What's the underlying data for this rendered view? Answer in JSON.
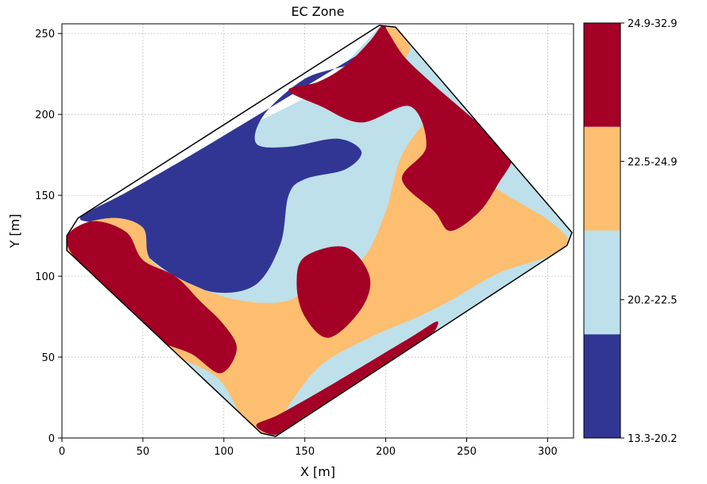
{
  "chart_data": {
    "type": "heatmap",
    "title": "EC Zone",
    "xlabel": "X [m]",
    "ylabel": "Y [m]",
    "xlim": [
      0,
      316
    ],
    "ylim": [
      0,
      256
    ],
    "x_ticks": [
      0,
      50,
      100,
      150,
      200,
      250,
      300
    ],
    "y_ticks": [
      0,
      50,
      100,
      150,
      200,
      250
    ],
    "grid": true,
    "field_boundary": [
      [
        3,
        125
      ],
      [
        10,
        136
      ],
      [
        196,
        255
      ],
      [
        206,
        254
      ],
      [
        315,
        127
      ],
      [
        312,
        119
      ],
      [
        132,
        1
      ],
      [
        123,
        3
      ],
      [
        3,
        116
      ]
    ],
    "zones": [
      {
        "label": "13.3-20.2",
        "color": "#313695"
      },
      {
        "label": "20.2-22.5",
        "color": "#bde0ea"
      },
      {
        "label": "22.5-24.9",
        "color": "#fdbe70"
      },
      {
        "label": "24.9-32.9",
        "color": "#a50026"
      }
    ],
    "colorbar": {
      "labels": [
        "24.9-32.9",
        "22.5-24.9",
        "20.2-22.5",
        "13.3-20.2"
      ]
    },
    "regions": [
      {
        "zone": 1,
        "points": [
          [
            3,
            125
          ],
          [
            40,
            150
          ],
          [
            100,
            185
          ],
          [
            160,
            215
          ],
          [
            196,
            254
          ],
          [
            206,
            254
          ],
          [
            315,
            127
          ],
          [
            312,
            119
          ],
          [
            132,
            1
          ],
          [
            123,
            3
          ],
          [
            3,
            116
          ]
        ]
      },
      {
        "zone": 0,
        "points": [
          [
            12,
            137
          ],
          [
            40,
            152
          ],
          [
            80,
            175
          ],
          [
            120,
            199
          ],
          [
            150,
            217
          ],
          [
            185,
            238
          ],
          [
            178,
            231
          ],
          [
            150,
            222
          ],
          [
            125,
            200
          ],
          [
            120,
            182
          ],
          [
            140,
            180
          ],
          [
            170,
            185
          ],
          [
            185,
            177
          ],
          [
            175,
            166
          ],
          [
            150,
            160
          ],
          [
            140,
            150
          ],
          [
            135,
            120
          ],
          [
            120,
            95
          ],
          [
            95,
            90
          ],
          [
            70,
            100
          ],
          [
            50,
            115
          ],
          [
            40,
            130
          ],
          [
            20,
            133
          ]
        ]
      },
      {
        "zone": 0,
        "points": [
          [
            223,
            104
          ],
          [
            233,
            105
          ],
          [
            236,
            98
          ],
          [
            228,
            95
          ],
          [
            223,
            99
          ]
        ]
      },
      {
        "zone": 2,
        "points": [
          [
            5,
            128
          ],
          [
            30,
            136
          ],
          [
            50,
            130
          ],
          [
            55,
            110
          ],
          [
            80,
            95
          ],
          [
            110,
            85
          ],
          [
            140,
            85
          ],
          [
            160,
            100
          ],
          [
            185,
            110
          ],
          [
            200,
            140
          ],
          [
            210,
            175
          ],
          [
            230,
            200
          ],
          [
            240,
            192
          ],
          [
            255,
            165
          ],
          [
            275,
            150
          ],
          [
            300,
            135
          ],
          [
            313,
            121
          ],
          [
            300,
            112
          ],
          [
            270,
            102
          ],
          [
            240,
            85
          ],
          [
            220,
            75
          ],
          [
            190,
            62
          ],
          [
            160,
            45
          ],
          [
            140,
            20
          ],
          [
            130,
            4
          ],
          [
            122,
            3
          ],
          [
            110,
            15
          ],
          [
            95,
            38
          ],
          [
            60,
            55
          ],
          [
            40,
            70
          ],
          [
            20,
            95
          ],
          [
            5,
            112
          ]
        ]
      },
      {
        "zone": 2,
        "points": [
          [
            160,
            210
          ],
          [
            175,
            222
          ],
          [
            190,
            240
          ],
          [
            198,
            252
          ],
          [
            206,
            253
          ],
          [
            215,
            240
          ],
          [
            200,
            225
          ],
          [
            175,
            210
          ]
        ]
      },
      {
        "zone": 3,
        "points": [
          [
            4,
            126
          ],
          [
            20,
            134
          ],
          [
            40,
            127
          ],
          [
            50,
            110
          ],
          [
            70,
            100
          ],
          [
            85,
            85
          ],
          [
            100,
            70
          ],
          [
            108,
            55
          ],
          [
            98,
            40
          ],
          [
            80,
            52
          ],
          [
            60,
            60
          ],
          [
            40,
            75
          ],
          [
            25,
            95
          ],
          [
            6,
            114
          ]
        ]
      },
      {
        "zone": 3,
        "points": [
          [
            150,
            112
          ],
          [
            175,
            118
          ],
          [
            190,
            100
          ],
          [
            185,
            80
          ],
          [
            165,
            62
          ],
          [
            150,
            75
          ],
          [
            145,
            95
          ]
        ]
      },
      {
        "zone": 3,
        "points": [
          [
            120,
            8
          ],
          [
            135,
            15
          ],
          [
            170,
            35
          ],
          [
            215,
            62
          ],
          [
            232,
            72
          ],
          [
            225,
            60
          ],
          [
            200,
            45
          ],
          [
            170,
            25
          ],
          [
            140,
            6
          ],
          [
            130,
            2
          ]
        ]
      },
      {
        "zone": 3,
        "points": [
          [
            140,
            215
          ],
          [
            160,
            205
          ],
          [
            185,
            195
          ],
          [
            215,
            205
          ],
          [
            225,
            180
          ],
          [
            210,
            160
          ],
          [
            230,
            140
          ],
          [
            240,
            128
          ],
          [
            258,
            140
          ],
          [
            270,
            158
          ],
          [
            278,
            172
          ],
          [
            272,
            180
          ],
          [
            260,
            192
          ],
          [
            245,
            205
          ],
          [
            230,
            218
          ],
          [
            212,
            235
          ],
          [
            202,
            250
          ],
          [
            198,
            255
          ],
          [
            190,
            245
          ],
          [
            175,
            230
          ],
          [
            158,
            220
          ]
        ]
      }
    ]
  }
}
